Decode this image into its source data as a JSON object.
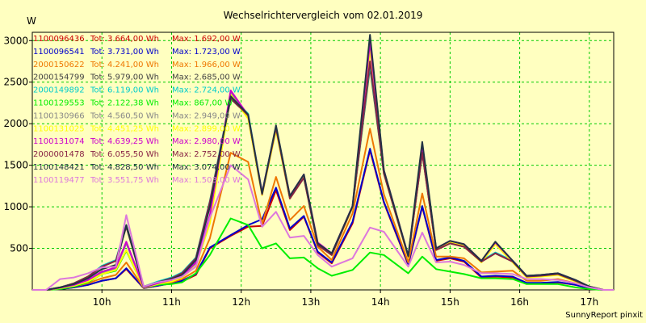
{
  "chart_data": {
    "type": "line",
    "title": "Wechselrichtervergleich vom 02.01.2019",
    "ylabel": "W",
    "xlabel": "",
    "footer": "SunnyReport pinxit",
    "ylim": [
      0,
      3100
    ],
    "xlim": [
      9.0,
      17.35
    ],
    "yticks": [
      500,
      1000,
      1500,
      2000,
      2500,
      3000
    ],
    "ytick_labels": [
      "500",
      "1000",
      "1500",
      "2000",
      "2500",
      "3000"
    ],
    "xticks": [
      10,
      11,
      12,
      13,
      14,
      15,
      16,
      17
    ],
    "xtick_labels": [
      "10h",
      "11h",
      "12h",
      "13h",
      "14h",
      "15h",
      "16h",
      "17h"
    ],
    "grid": true,
    "legend_position": "top-left",
    "x": [
      9.0,
      9.2,
      9.4,
      9.6,
      9.8,
      10.0,
      10.2,
      10.35,
      10.6,
      10.8,
      11.0,
      11.15,
      11.35,
      11.55,
      11.85,
      12.1,
      12.3,
      12.5,
      12.7,
      12.9,
      13.1,
      13.3,
      13.6,
      13.85,
      14.05,
      14.4,
      14.6,
      14.8,
      15.0,
      15.2,
      15.45,
      15.65,
      15.9,
      16.1,
      16.3,
      16.55,
      16.8,
      17.0,
      17.2,
      17.35
    ],
    "series": [
      {
        "name": "1100096436",
        "tot": "3.664,00 Wh",
        "max": "1.692,00 W",
        "color": "#cc0000",
        "values": [
          0,
          0,
          10,
          30,
          60,
          110,
          140,
          250,
          20,
          50,
          80,
          100,
          180,
          500,
          650,
          760,
          770,
          1200,
          720,
          880,
          450,
          320,
          800,
          1680,
          1050,
          300,
          1000,
          350,
          380,
          340,
          150,
          160,
          150,
          80,
          80,
          90,
          60,
          20,
          0,
          0
        ]
      },
      {
        "name": "1100096541",
        "tot": "3.731,00 Wh",
        "max": "1.723,00 W",
        "color": "#0000cc",
        "values": [
          0,
          0,
          10,
          30,
          60,
          110,
          140,
          260,
          20,
          50,
          80,
          110,
          190,
          510,
          660,
          780,
          850,
          1230,
          740,
          890,
          460,
          330,
          820,
          1700,
          1060,
          310,
          1010,
          360,
          390,
          350,
          160,
          170,
          160,
          85,
          85,
          95,
          60,
          20,
          0,
          0
        ]
      },
      {
        "name": "2000150622",
        "tot": "4.241,00 Wh",
        "max": "1.966,00 W",
        "color": "#ee7700",
        "values": [
          0,
          0,
          20,
          40,
          80,
          140,
          180,
          330,
          25,
          60,
          90,
          130,
          230,
          620,
          1650,
          1540,
          790,
          1360,
          840,
          1010,
          520,
          360,
          920,
          1940,
          1150,
          330,
          1160,
          400,
          400,
          380,
          210,
          220,
          230,
          110,
          110,
          130,
          80,
          30,
          0,
          0
        ]
      },
      {
        "name": "2000154799",
        "tot": "5.979,00 Wh",
        "max": "2.685,00 W",
        "color": "#444444",
        "values": [
          0,
          0,
          30,
          80,
          160,
          280,
          350,
          760,
          40,
          90,
          140,
          200,
          380,
          1050,
          2300,
          2100,
          1150,
          1950,
          1100,
          1350,
          540,
          420,
          1000,
          2680,
          1400,
          400,
          1650,
          480,
          560,
          520,
          340,
          440,
          340,
          160,
          170,
          190,
          110,
          40,
          0,
          0
        ]
      },
      {
        "name": "2000149892",
        "tot": "6.119,00 Wh",
        "max": "2.724,00 W",
        "color": "#00cccc",
        "values": [
          0,
          0,
          30,
          80,
          160,
          290,
          360,
          780,
          40,
          100,
          150,
          210,
          390,
          1070,
          2330,
          2120,
          1170,
          1960,
          1110,
          1360,
          550,
          430,
          1010,
          2720,
          1420,
          410,
          1660,
          490,
          570,
          530,
          350,
          450,
          350,
          170,
          180,
          200,
          120,
          40,
          0,
          0
        ]
      },
      {
        "name": "1100129553",
        "tot": "2.122,38 Wh",
        "max": "867,00 W",
        "color": "#00ee00",
        "values": [
          0,
          0,
          10,
          40,
          90,
          190,
          230,
          470,
          30,
          60,
          70,
          90,
          200,
          420,
          860,
          780,
          500,
          560,
          380,
          390,
          260,
          170,
          240,
          450,
          420,
          200,
          400,
          250,
          220,
          190,
          140,
          140,
          130,
          70,
          70,
          70,
          30,
          10,
          0,
          0
        ]
      },
      {
        "name": "1100130966",
        "tot": "4.560,50 Wh",
        "max": "2.949,00 W",
        "color": "#888888",
        "values": [
          0,
          0,
          25,
          60,
          120,
          210,
          260,
          560,
          30,
          80,
          120,
          170,
          320,
          880,
          2380,
          2080,
          1160,
          1940,
          1120,
          1380,
          560,
          430,
          1000,
          2940,
          1430,
          400,
          1700,
          490,
          580,
          540,
          340,
          560,
          340,
          160,
          170,
          190,
          110,
          40,
          0,
          0
        ]
      },
      {
        "name": "1100131025",
        "tot": "4.451,25 Wh",
        "max": "2.899,00 W",
        "color": "#ffff00",
        "values": [
          0,
          0,
          20,
          50,
          100,
          190,
          240,
          480,
          25,
          70,
          100,
          150,
          290,
          800,
          2350,
          2060,
          1140,
          1920,
          1100,
          1360,
          550,
          420,
          990,
          2890,
          1410,
          390,
          1690,
          480,
          570,
          530,
          330,
          550,
          330,
          150,
          160,
          180,
          100,
          40,
          0,
          0
        ]
      },
      {
        "name": "1100131074",
        "tot": "4.639,25 Wh",
        "max": "2.980,00 W",
        "color": "#cc00cc",
        "values": [
          0,
          0,
          25,
          60,
          120,
          220,
          270,
          580,
          30,
          80,
          120,
          170,
          330,
          900,
          2400,
          2100,
          1170,
          1960,
          1130,
          1390,
          570,
          440,
          1010,
          2980,
          1440,
          410,
          1720,
          500,
          590,
          550,
          350,
          570,
          350,
          170,
          180,
          200,
          120,
          40,
          0,
          0
        ]
      },
      {
        "name": "2000001478",
        "tot": "6.055,50 Wh",
        "max": "2.752,00 W",
        "color": "#882244",
        "values": [
          0,
          0,
          30,
          80,
          160,
          280,
          350,
          770,
          40,
          90,
          140,
          200,
          380,
          1060,
          2310,
          2100,
          1150,
          1950,
          1100,
          1350,
          540,
          420,
          1000,
          2750,
          1400,
          400,
          1650,
          480,
          560,
          520,
          340,
          440,
          340,
          160,
          170,
          190,
          110,
          40,
          0,
          0
        ]
      },
      {
        "name": "1100148421",
        "tot": "4.828,50 Wh",
        "max": "3.074,00 W",
        "color": "#223344",
        "values": [
          0,
          0,
          30,
          70,
          140,
          250,
          300,
          780,
          35,
          90,
          130,
          180,
          360,
          1000,
          2330,
          2110,
          1160,
          1980,
          1130,
          1390,
          560,
          440,
          1010,
          3070,
          1440,
          410,
          1780,
          500,
          590,
          550,
          350,
          580,
          350,
          170,
          180,
          200,
          120,
          40,
          0,
          0
        ]
      },
      {
        "name": "1100119477",
        "tot": "3.551,75 Wh",
        "max": "1.503,00 W",
        "color": "#dd77dd",
        "values": [
          0,
          0,
          130,
          150,
          200,
          270,
          280,
          900,
          40,
          90,
          120,
          160,
          280,
          870,
          1500,
          1330,
          760,
          940,
          630,
          650,
          420,
          280,
          380,
          750,
          700,
          280,
          690,
          330,
          340,
          300,
          200,
          200,
          190,
          130,
          130,
          120,
          80,
          30,
          0,
          0
        ]
      }
    ]
  }
}
